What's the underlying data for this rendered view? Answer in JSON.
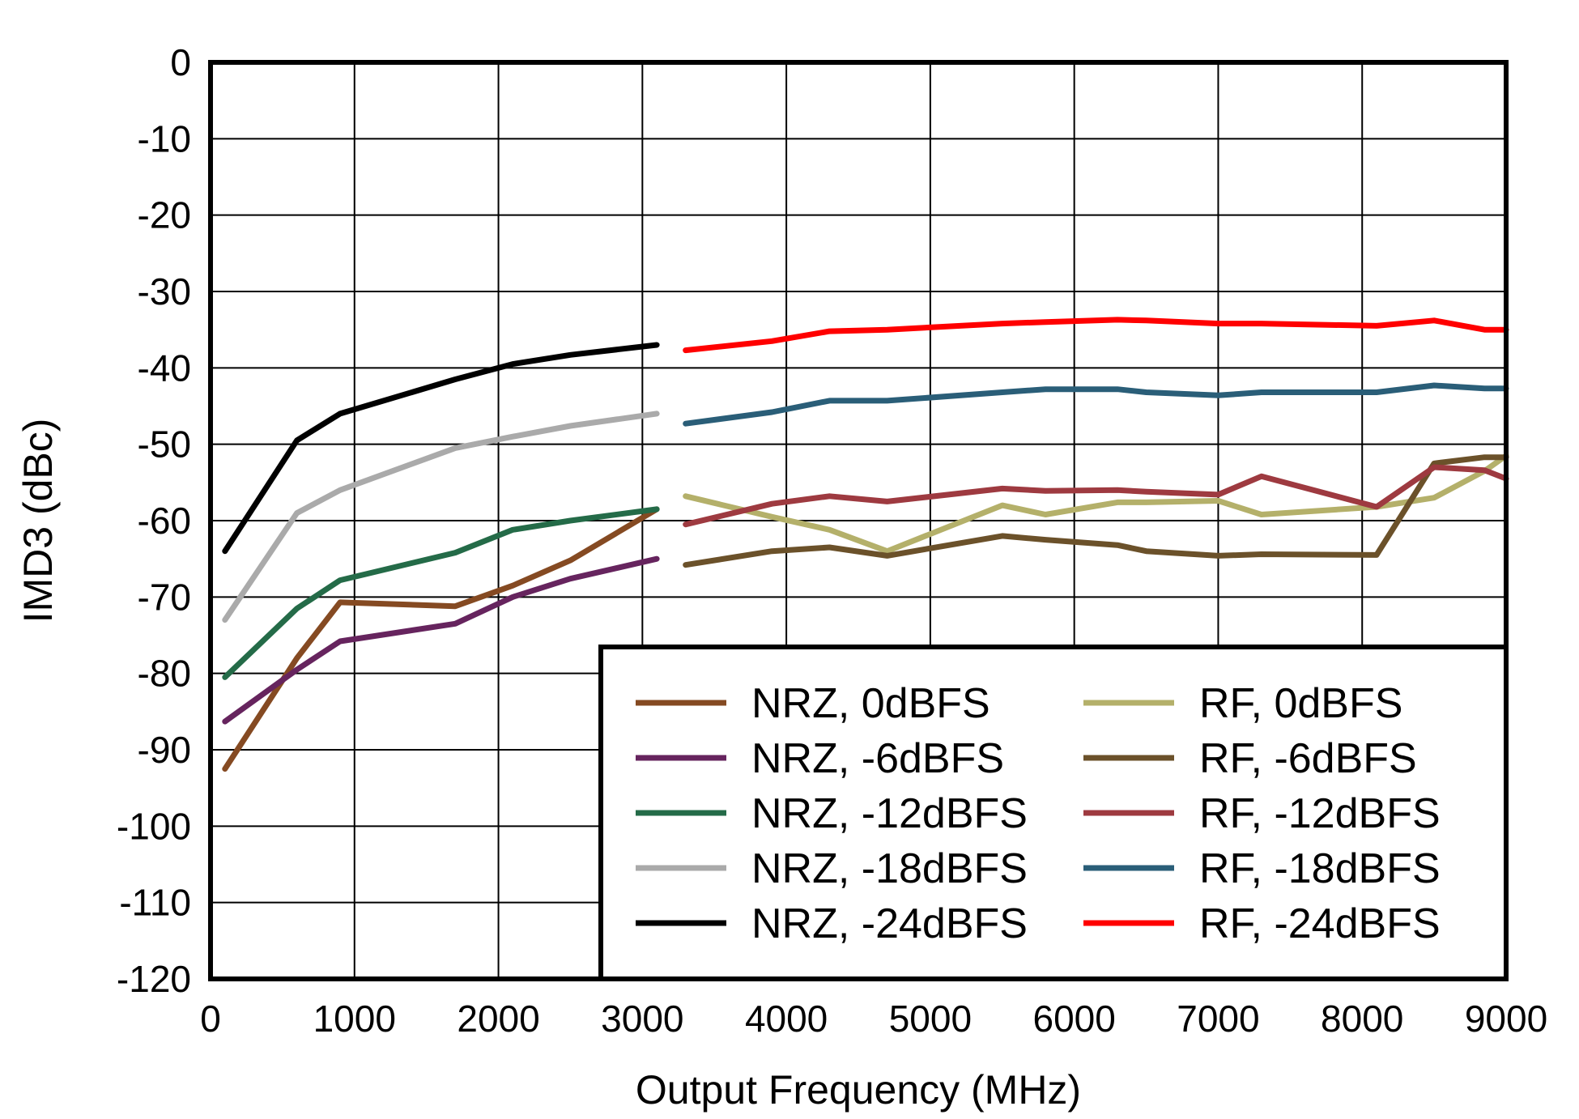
{
  "chart_data": {
    "type": "line",
    "title": "",
    "xlabel": "Output Frequency (MHz)",
    "ylabel": "IMD3 (dBc)",
    "xlim": [
      0,
      9000
    ],
    "ylim": [
      -120,
      0
    ],
    "xticks": [
      0,
      1000,
      2000,
      3000,
      4000,
      5000,
      6000,
      7000,
      8000,
      9000
    ],
    "yticks": [
      0,
      -10,
      -20,
      -30,
      -40,
      -50,
      -60,
      -70,
      -80,
      -90,
      -100,
      -110,
      -120
    ],
    "grid": true,
    "legend_position": "bottom-right",
    "series": [
      {
        "name": "NRZ, 0dBFS",
        "color": "#854a22",
        "x": [
          100,
          600,
          900,
          1700,
          2100,
          2500,
          3100
        ],
        "y": [
          -92.5,
          -78,
          -70.7,
          -71.2,
          -68.5,
          -65.2,
          -58.5
        ]
      },
      {
        "name": "NRZ, -6dBFS",
        "color": "#66245e",
        "x": [
          100,
          600,
          900,
          1700,
          2100,
          2500,
          3100
        ],
        "y": [
          -86.3,
          -79.5,
          -75.8,
          -73.5,
          -70,
          -67.6,
          -65
        ]
      },
      {
        "name": "NRZ, -12dBFS",
        "color": "#246b48",
        "x": [
          100,
          600,
          900,
          1700,
          2100,
          2500,
          3100
        ],
        "y": [
          -80.5,
          -71.5,
          -67.8,
          -64.2,
          -61.2,
          -60,
          -58.5
        ]
      },
      {
        "name": "NRZ, -18dBFS",
        "color": "#aaaaaa",
        "x": [
          100,
          600,
          900,
          1700,
          2100,
          2500,
          3100
        ],
        "y": [
          -73,
          -59,
          -56,
          -50.5,
          -49,
          -47.6,
          -46
        ]
      },
      {
        "name": "NRZ, -24dBFS",
        "color": "#000000",
        "x": [
          100,
          600,
          900,
          1700,
          2100,
          2500,
          3100
        ],
        "y": [
          -64,
          -49.5,
          -46,
          -41.5,
          -39.5,
          -38.3,
          -37
        ]
      },
      {
        "name": "RF, 0dBFS",
        "color": "#b4b06a",
        "x": [
          3300,
          3900,
          4300,
          4700,
          5500,
          5800,
          6300,
          6500,
          7000,
          7300,
          8100,
          8500,
          8850,
          9000
        ],
        "y": [
          -56.8,
          -59.5,
          -61.2,
          -64,
          -58,
          -59.2,
          -57.6,
          -57.6,
          -57.4,
          -59.2,
          -58.2,
          -57,
          -53.5,
          -51.5
        ]
      },
      {
        "name": "RF, -6dBFS",
        "color": "#6b512a",
        "x": [
          3300,
          3900,
          4300,
          4700,
          5500,
          5800,
          6300,
          6500,
          7000,
          7300,
          8100,
          8500,
          8850,
          9000
        ],
        "y": [
          -65.8,
          -64,
          -63.5,
          -64.6,
          -62,
          -62.5,
          -63.2,
          -64,
          -64.6,
          -64.4,
          -64.5,
          -52.5,
          -51.7,
          -51.7
        ]
      },
      {
        "name": "RF, -12dBFS",
        "color": "#9e3a40",
        "x": [
          3300,
          3900,
          4300,
          4700,
          5500,
          5800,
          6300,
          6500,
          7000,
          7300,
          8100,
          8500,
          8850,
          9000
        ],
        "y": [
          -60.5,
          -57.8,
          -56.8,
          -57.5,
          -55.8,
          -56.1,
          -56,
          -56.2,
          -56.6,
          -54.2,
          -58.2,
          -53,
          -53.4,
          -54.5
        ]
      },
      {
        "name": "RF, -18dBFS",
        "color": "#2a5e78",
        "x": [
          3300,
          3900,
          4300,
          4700,
          5500,
          5800,
          6300,
          6500,
          7000,
          7300,
          8100,
          8500,
          8850,
          9000
        ],
        "y": [
          -47.3,
          -45.8,
          -44.3,
          -44.3,
          -43.2,
          -42.8,
          -42.8,
          -43.2,
          -43.6,
          -43.2,
          -43.2,
          -42.3,
          -42.7,
          -42.7
        ]
      },
      {
        "name": "RF, -24dBFS",
        "color": "#ff0000",
        "x": [
          3300,
          3900,
          4300,
          4700,
          5500,
          5800,
          6300,
          6500,
          7000,
          7300,
          8100,
          8500,
          8850,
          9000
        ],
        "y": [
          -37.7,
          -36.5,
          -35.2,
          -35,
          -34.2,
          -34,
          -33.7,
          -33.8,
          -34.2,
          -34.2,
          -34.5,
          -33.8,
          -35,
          -35
        ]
      }
    ]
  }
}
